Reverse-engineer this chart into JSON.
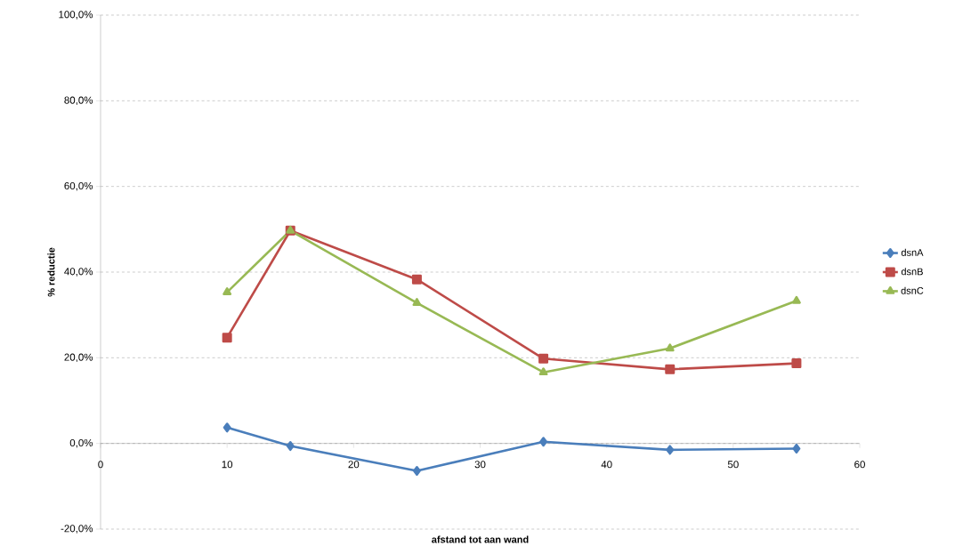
{
  "chart_data": {
    "type": "line",
    "xlabel": "afstand tot aan wand",
    "ylabel": "% reductie",
    "x": [
      10,
      15,
      25,
      35,
      45,
      55
    ],
    "series": [
      {
        "name": "dsnA",
        "color": "#4a7ebb",
        "marker": "diamond",
        "values": [
          3.7,
          -0.6,
          -6.4,
          0.4,
          -1.5,
          -1.2
        ]
      },
      {
        "name": "dsnB",
        "color": "#be4b48",
        "marker": "square",
        "values": [
          24.7,
          49.7,
          38.3,
          19.8,
          17.3,
          18.7
        ]
      },
      {
        "name": "dsnC",
        "color": "#98b954",
        "marker": "triangle",
        "values": [
          35.3,
          49.7,
          32.8,
          16.6,
          22.2,
          33.3
        ]
      }
    ],
    "xlim": [
      0,
      60
    ],
    "xticks": [
      0,
      10,
      20,
      30,
      40,
      50,
      60
    ],
    "ylim": [
      -20,
      100
    ],
    "yticks": [
      {
        "value": -20,
        "label": "-20,0%"
      },
      {
        "value": 0,
        "label": "0,0%"
      },
      {
        "value": 20,
        "label": "20,0%"
      },
      {
        "value": 40,
        "label": "40,0%"
      },
      {
        "value": 60,
        "label": "60,0%"
      },
      {
        "value": 80,
        "label": "80,0%"
      },
      {
        "value": 100,
        "label": "100,0%"
      }
    ],
    "grid": "y",
    "legend": "right",
    "line_style": "solid"
  }
}
